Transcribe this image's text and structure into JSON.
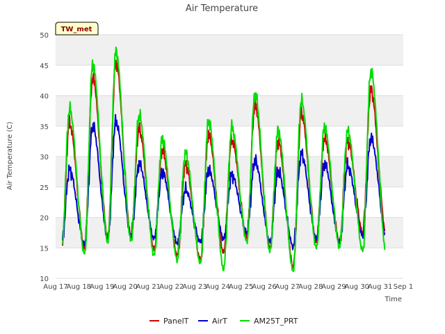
{
  "chart_data": {
    "type": "line",
    "title": "Air Temperature",
    "xlabel": "Time",
    "ylabel": "Air Temperature (C)",
    "station_label": "TW_met",
    "xlim": [
      0,
      15
    ],
    "ylim": [
      10,
      50
    ],
    "yticks": [
      10,
      15,
      20,
      25,
      30,
      35,
      40,
      45,
      50
    ],
    "xtick_labels": [
      "Aug 17",
      "Aug 18",
      "Aug 19",
      "Aug 20",
      "Aug 21",
      "Aug 22",
      "Aug 23",
      "Aug 24",
      "Aug 25",
      "Aug 26",
      "Aug 27",
      "Aug 28",
      "Aug 29",
      "Aug 30",
      "Aug 31",
      "Sep 1"
    ],
    "x_units": "days since Aug 17 00:00",
    "grid": true,
    "legend_position": "bottom",
    "series": [
      {
        "name": "PanelT",
        "color": "#cc0000",
        "daily_min": [
          14.5,
          15.0,
          16.8,
          17.0,
          14.8,
          13.8,
          13.0,
          14.2,
          16.8,
          15.0,
          12.0,
          16.0,
          16.0,
          17.5
        ],
        "daily_max": [
          35.5,
          43.0,
          45.5,
          34.5,
          31.0,
          28.8,
          33.5,
          32.8,
          38.5,
          32.5,
          37.0,
          33.0,
          32.5,
          41.0
        ],
        "start": 15.5,
        "end": 17.0
      },
      {
        "name": "AirT",
        "color": "#0000cc",
        "daily_min": [
          15.5,
          15.5,
          16.5,
          17.0,
          16.5,
          15.8,
          16.0,
          16.5,
          17.5,
          16.0,
          15.2,
          16.5,
          16.0,
          17.0
        ],
        "daily_max": [
          27.8,
          35.0,
          35.8,
          28.8,
          27.5,
          24.5,
          27.8,
          27.0,
          29.3,
          27.5,
          30.5,
          28.8,
          28.5,
          33.0
        ],
        "start": 18.0,
        "end": 18.5
      },
      {
        "name": "AM25T_PRT",
        "color": "#00dd00",
        "daily_min": [
          14.0,
          14.0,
          16.0,
          16.2,
          13.8,
          13.0,
          12.5,
          11.5,
          16.0,
          14.5,
          11.2,
          15.0,
          15.2,
          14.5
        ],
        "daily_max": [
          37.8,
          45.3,
          47.2,
          36.8,
          32.8,
          30.5,
          35.8,
          34.8,
          40.3,
          34.3,
          39.2,
          34.8,
          34.2,
          44.0
        ],
        "start": 14.0,
        "end": 16.5
      }
    ]
  }
}
